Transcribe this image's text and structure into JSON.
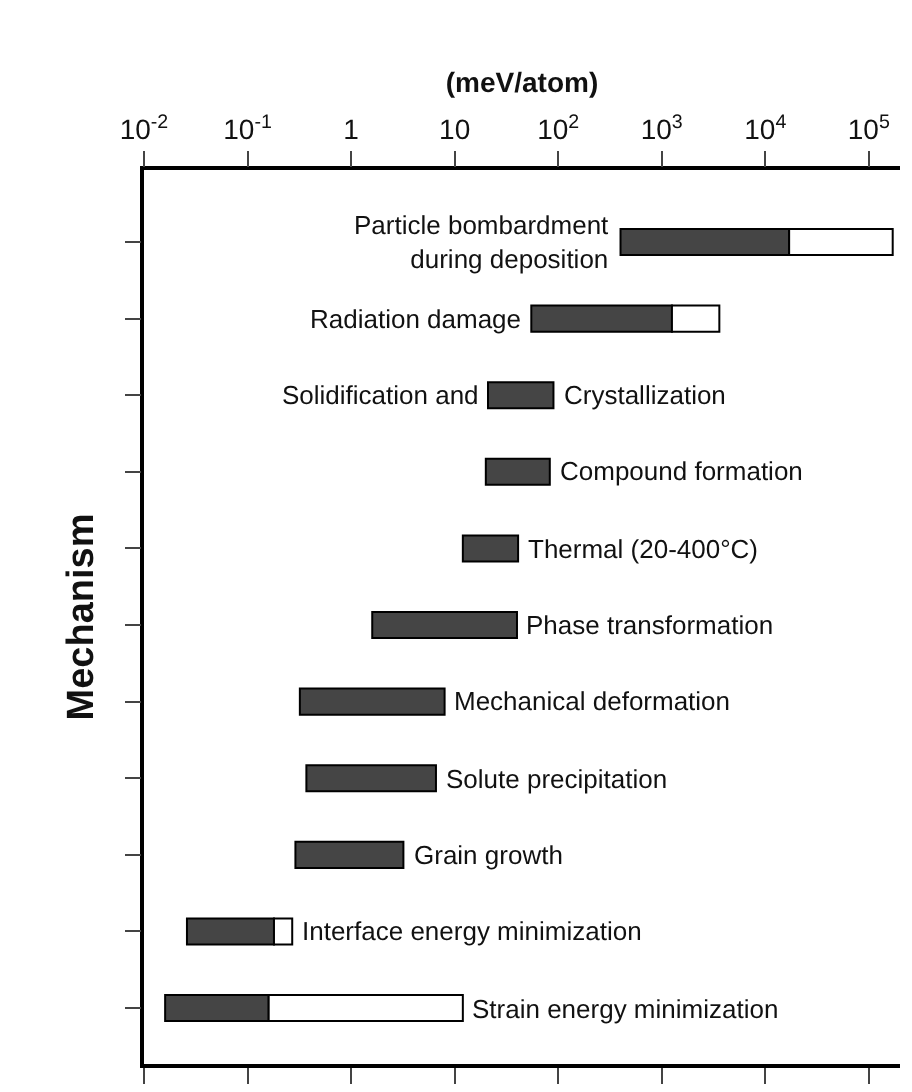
{
  "chart_data": {
    "type": "bar",
    "orientation": "horizontal",
    "log": "x",
    "xlabel": "(meV/atom)",
    "ylabel": "Mechanism",
    "categories": [
      "Particle bombardment\nduring deposition",
      "Radiation damage",
      "Solidification and Crystallization",
      "Compound formation",
      "Thermal (20-400°C)",
      "Phase transformation",
      "Mechanical deformation",
      "Solute precipitation",
      "Grain growth",
      "Interface energy minimization",
      "Strain energy minimization"
    ],
    "series": [
      {
        "color": "#454545",
        "base": [
          400,
          55,
          21,
          20,
          12,
          1.6,
          0.32,
          0.37,
          0.29,
          0.026,
          0.016
        ],
        "values": [
          16600,
          1200,
          69,
          63,
          29,
          38.4,
          7.68,
          6.23,
          2.91,
          0.154,
          0.144
        ]
      },
      {
        "color": "#ffffff",
        "base": [
          17000,
          1255,
          null,
          null,
          null,
          null,
          null,
          null,
          null,
          0.18,
          0.16
        ],
        "values": [
          153000,
          2345,
          null,
          null,
          null,
          null,
          null,
          null,
          null,
          0.09,
          11.84
        ]
      }
    ],
    "xlim": [
      0.01,
      200000
    ],
    "xticks": [
      {
        "value": 0.01,
        "label": "10$^{-2}$"
      },
      {
        "value": 0.1,
        "label": "10$^{-1}$"
      },
      1,
      10,
      {
        "value": 100,
        "label": "10$^{2}$"
      },
      {
        "value": 1000,
        "label": "10$^{3}$"
      },
      {
        "value": 10000,
        "label": "10$^{4}$"
      },
      {
        "value": 100000,
        "label": "10$^{5}$"
      }
    ],
    "tick_labels": "x",
    "grid": false
  }
}
